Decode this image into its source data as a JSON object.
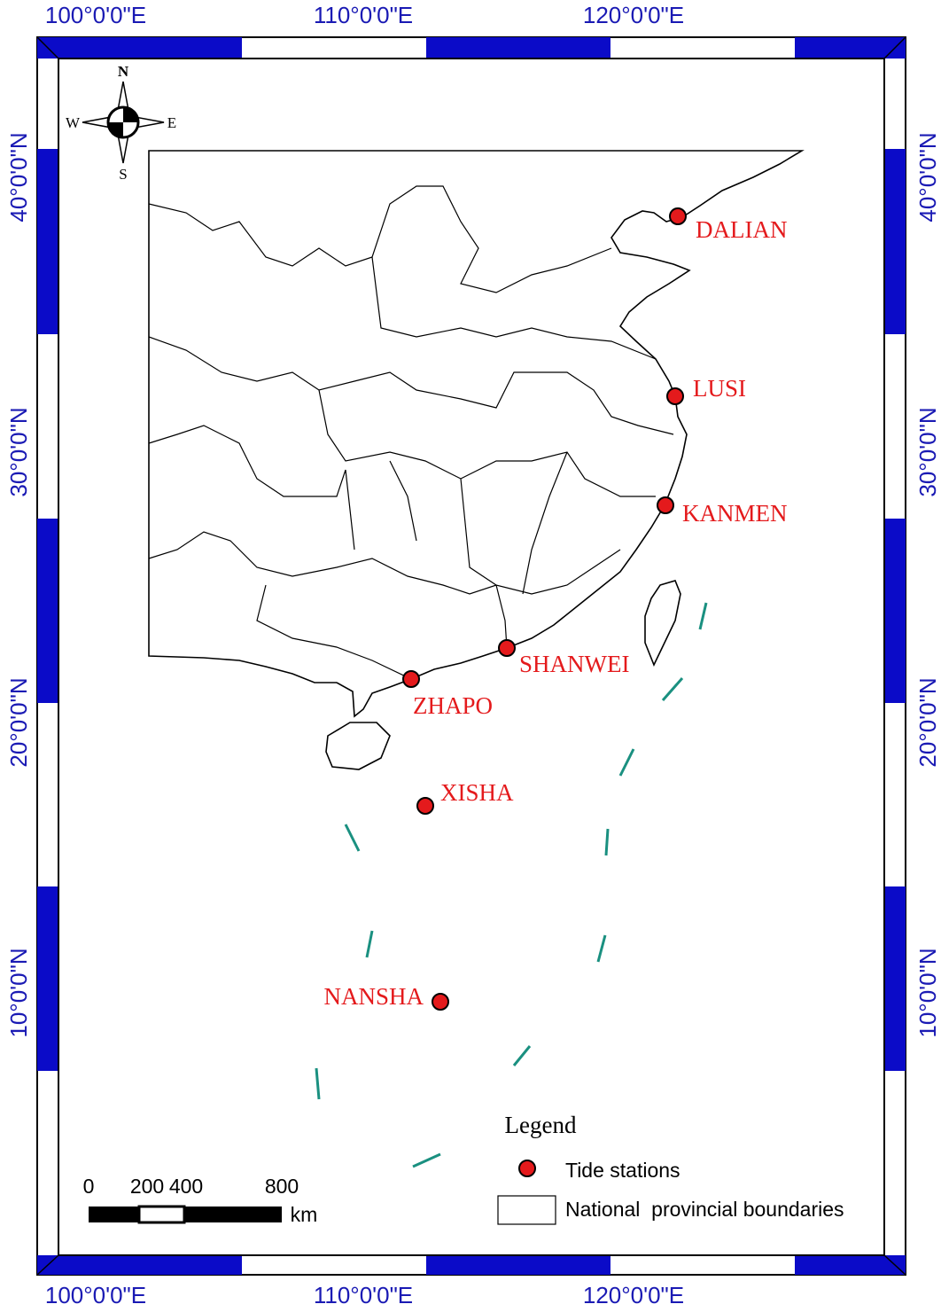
{
  "map": {
    "graticule": {
      "top": [
        "100°0'0\"E",
        "110°0'0\"E",
        "120°0'0\"E"
      ],
      "bottom": [
        "100°0'0\"E",
        "110°0'0\"E",
        "120°0'0\"E"
      ],
      "left": [
        "40°0'0\"N",
        "30°0'0\"N",
        "20°0'0\"N",
        "10°0'0\"N"
      ],
      "right": [
        "40°0'0\"N",
        "30°0'0\"N",
        "20°0'0\"N",
        "10°0'0\"N"
      ]
    },
    "compass": {
      "n": "N",
      "s": "S",
      "e": "E",
      "w": "W"
    },
    "stations": [
      "DALIAN",
      "LUSI",
      "KANMEN",
      "SHANWEI",
      "ZHAPO",
      "XISHA",
      "NANSHA"
    ],
    "legend": {
      "title": "Legend",
      "items": [
        "Tide stations",
        "National  provincial boundaries"
      ]
    },
    "scale_bar": {
      "labels": [
        "0",
        "200",
        "400",
        "800"
      ],
      "unit": "km"
    }
  }
}
